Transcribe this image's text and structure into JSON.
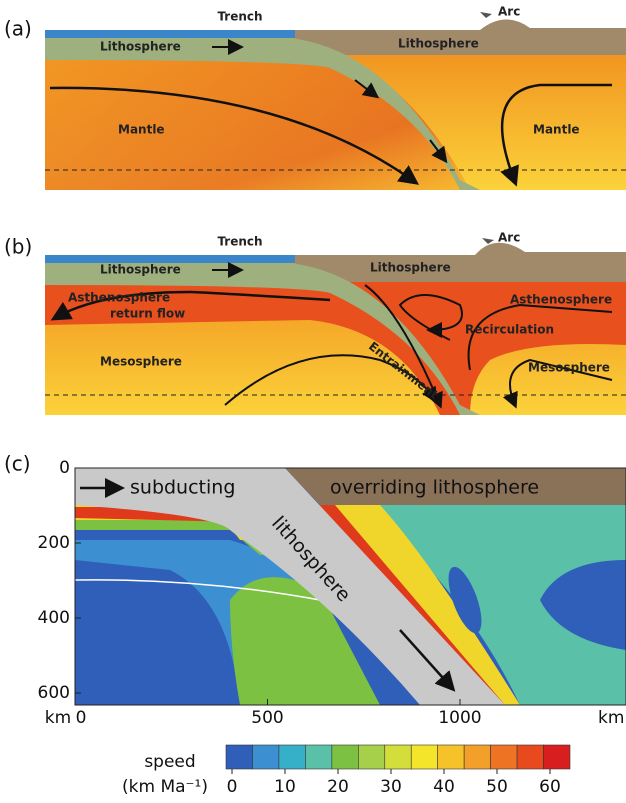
{
  "panel_a": {
    "label": "(a)",
    "trench": "Trench",
    "arc": "Arc",
    "lithosphere_left": "Lithosphere",
    "lithosphere_right": "Lithosphere",
    "mantle_left": "Mantle",
    "mantle_right": "Mantle"
  },
  "panel_b": {
    "label": "(b)",
    "trench": "Trench",
    "arc": "Arc",
    "lithosphere_left": "Lithosphere",
    "lithosphere_right": "Lithosphere",
    "asthenosphere_left_1": "Asthenosphere",
    "asthenosphere_left_2": "return flow",
    "asthenosphere_right": "Asthenosphere",
    "recirculation": "Recirculation",
    "entrainment": "Entrainment",
    "mesosphere_left": "Mesosphere",
    "mesosphere_right": "Mesosphere"
  },
  "panel_c": {
    "label": "(c)",
    "subducting": "subducting",
    "overriding": "overriding  lithosphere",
    "slab": "lithosphere",
    "y_ticks": [
      0,
      200,
      400,
      600
    ],
    "x_ticks": [
      0,
      500,
      1000
    ],
    "unit": "km",
    "colorbar": {
      "title": "speed",
      "unit": "(km Ma⁻¹)",
      "ticks": [
        0,
        10,
        20,
        30,
        40,
        50,
        60
      ]
    }
  }
}
